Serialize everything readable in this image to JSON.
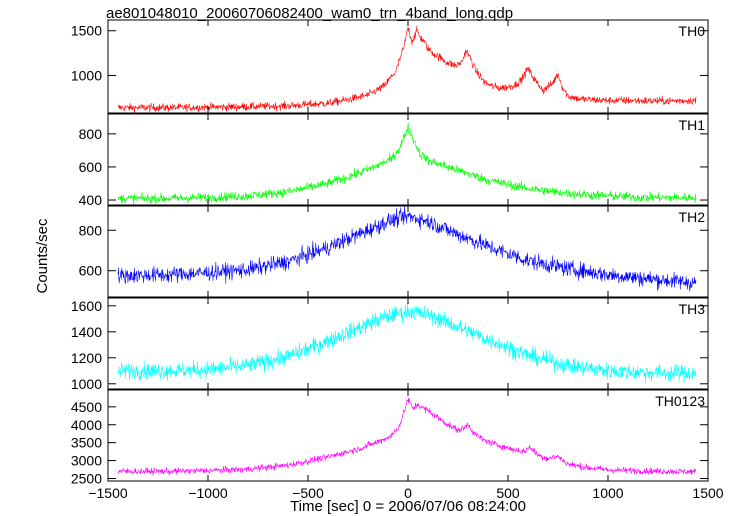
{
  "chart_data": {
    "type": "line",
    "title": "ae801048010_20060706082400_wam0_trn_4band_long.qdp",
    "xlabel": "Time [sec] 0 = 2006/07/06 08:24:00",
    "ylabel": "Counts/sec",
    "xlim": [
      -1500,
      1500
    ],
    "x_ticks": [
      -1500,
      -1000,
      -500,
      0,
      500,
      1000,
      1500
    ],
    "x_tick_labels": [
      "−1500",
      "−1000",
      "−500",
      "0",
      "500",
      "1000",
      "1500"
    ],
    "grid": false,
    "legend": "none",
    "panels": [
      {
        "name": "TH0",
        "color": "#ff0000",
        "ylim": [
          580,
          1620
        ],
        "y_ticks": [
          1000,
          1500
        ],
        "y_tick_labels": [
          "1000",
          "1500"
        ],
        "noise": 22,
        "x": [
          -1450,
          -1200,
          -1000,
          -800,
          -600,
          -400,
          -300,
          -200,
          -120,
          -60,
          -20,
          0,
          20,
          45,
          60,
          80,
          100,
          130,
          160,
          200,
          240,
          270,
          290,
          310,
          340,
          380,
          420,
          460,
          500,
          540,
          570,
          600,
          620,
          650,
          680,
          700,
          720,
          750,
          770,
          800,
          850,
          900,
          1000,
          1100,
          1200,
          1300,
          1440
        ],
        "values": [
          640,
          640,
          645,
          650,
          660,
          690,
          730,
          780,
          880,
          1050,
          1320,
          1540,
          1380,
          1500,
          1430,
          1380,
          1300,
          1240,
          1200,
          1140,
          1110,
          1150,
          1280,
          1200,
          1050,
          930,
          880,
          860,
          870,
          900,
          960,
          1080,
          1000,
          900,
          830,
          880,
          900,
          1020,
          880,
          770,
          740,
          730,
          720,
          720,
          715,
          715,
          720
        ]
      },
      {
        "name": "TH1",
        "color": "#00ff00",
        "ylim": [
          370,
          920
        ],
        "y_ticks": [
          400,
          600,
          800
        ],
        "y_tick_labels": [
          "400",
          "600",
          "800"
        ],
        "noise": 14,
        "x": [
          -1450,
          -1200,
          -1000,
          -800,
          -600,
          -400,
          -250,
          -150,
          -80,
          -40,
          0,
          30,
          60,
          100,
          150,
          250,
          400,
          600,
          800,
          1000,
          1200,
          1440
        ],
        "values": [
          410,
          410,
          415,
          425,
          450,
          500,
          560,
          610,
          650,
          720,
          840,
          760,
          680,
          640,
          620,
          580,
          520,
          470,
          440,
          425,
          415,
          415
        ]
      },
      {
        "name": "TH2",
        "color": "#0000ff",
        "ylim": [
          470,
          920
        ],
        "y_ticks": [
          600,
          800
        ],
        "y_tick_labels": [
          "600",
          "800"
        ],
        "noise": 20,
        "x": [
          -1450,
          -1200,
          -1000,
          -800,
          -600,
          -400,
          -200,
          -100,
          0,
          100,
          200,
          400,
          600,
          800,
          1000,
          1200,
          1440
        ],
        "values": [
          575,
          580,
          590,
          605,
          645,
          715,
          800,
          845,
          870,
          845,
          800,
          720,
          650,
          610,
          580,
          560,
          540
        ]
      },
      {
        "name": "TH3",
        "color": "#00ffff",
        "ylim": [
          960,
          1660
        ],
        "y_ticks": [
          1000,
          1200,
          1400,
          1600
        ],
        "y_tick_labels": [
          "1000",
          "1200",
          "1400",
          "1600"
        ],
        "noise": 32,
        "x": [
          -1450,
          -1200,
          -1000,
          -800,
          -600,
          -400,
          -200,
          -100,
          0,
          100,
          200,
          400,
          600,
          800,
          1000,
          1200,
          1440
        ],
        "values": [
          1100,
          1100,
          1110,
          1140,
          1210,
          1330,
          1460,
          1520,
          1560,
          1530,
          1470,
          1340,
          1220,
          1140,
          1100,
          1085,
          1080
        ]
      },
      {
        "name": "TH0123",
        "color": "#ff00ff",
        "ylim": [
          2430,
          4970
        ],
        "y_ticks": [
          2500,
          3000,
          3500,
          4000,
          4500
        ],
        "y_tick_labels": [
          "2500",
          "3000",
          "3500",
          "4000",
          "4500"
        ],
        "noise": 45,
        "x": [
          -1450,
          -1200,
          -1000,
          -800,
          -600,
          -400,
          -250,
          -150,
          -80,
          -40,
          0,
          25,
          50,
          70,
          100,
          150,
          200,
          250,
          280,
          300,
          330,
          380,
          450,
          520,
          580,
          610,
          650,
          700,
          750,
          800,
          900,
          1000,
          1200,
          1440
        ],
        "values": [
          2700,
          2700,
          2720,
          2760,
          2870,
          3100,
          3320,
          3520,
          3700,
          4000,
          4720,
          4450,
          4580,
          4480,
          4400,
          4200,
          4000,
          3850,
          3900,
          4030,
          3760,
          3570,
          3430,
          3320,
          3250,
          3380,
          3150,
          3060,
          3120,
          2900,
          2800,
          2740,
          2710,
          2690
        ]
      }
    ]
  }
}
